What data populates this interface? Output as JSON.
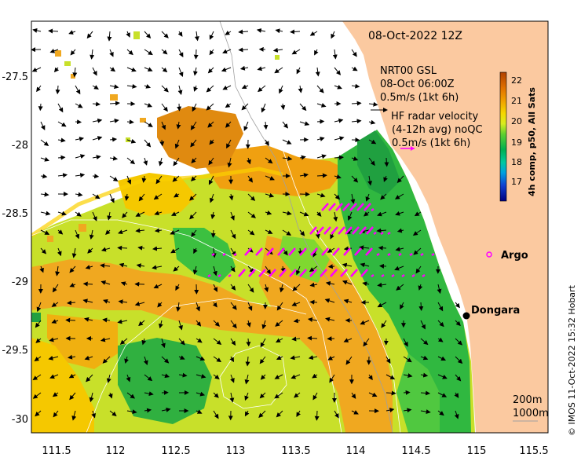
{
  "map": {
    "timestamp": "08-Oct-2022 12Z",
    "gsl_legend": {
      "title": "NRT00 GSL",
      "time": "08-Oct 06:00Z",
      "scale": "0.5m/s (1kt 6h)"
    },
    "hf_legend": {
      "line1": "HF radar velocity",
      "line2": "(4-12h avg) noQC",
      "scale": "0.5m/s (1kt 6h)"
    },
    "isobath_legend": {
      "a": "200m",
      "b": "1000m"
    },
    "places": [
      {
        "name": "Argo",
        "lon": 114.97,
        "lat": -28.87
      },
      {
        "name": "Dongara",
        "lon": 114.93,
        "lat": -29.25
      }
    ],
    "credit": "© IMOS 11-Oct-2022 15:32 Hobart",
    "x_ticks": [
      "111.5",
      "112",
      "112.5",
      "113",
      "113.5",
      "114",
      "114.5",
      "115",
      "115.5"
    ],
    "y_ticks": [
      "-27.5",
      "-28",
      "-28.5",
      "-29",
      "-29.5",
      "-30"
    ]
  },
  "colorbar": {
    "label": "4h comp, p50, All Sats",
    "ticks": [
      "17",
      "18",
      "19",
      "20",
      "21",
      "22"
    ],
    "range": [
      16.5,
      22.5
    ]
  },
  "colors": {
    "land": "#fbc9a0",
    "no_data": "#ffffff",
    "hf_arrows": "#ff00ff",
    "argo_marker": "#ff00ff",
    "place_marker": "#000000"
  }
}
